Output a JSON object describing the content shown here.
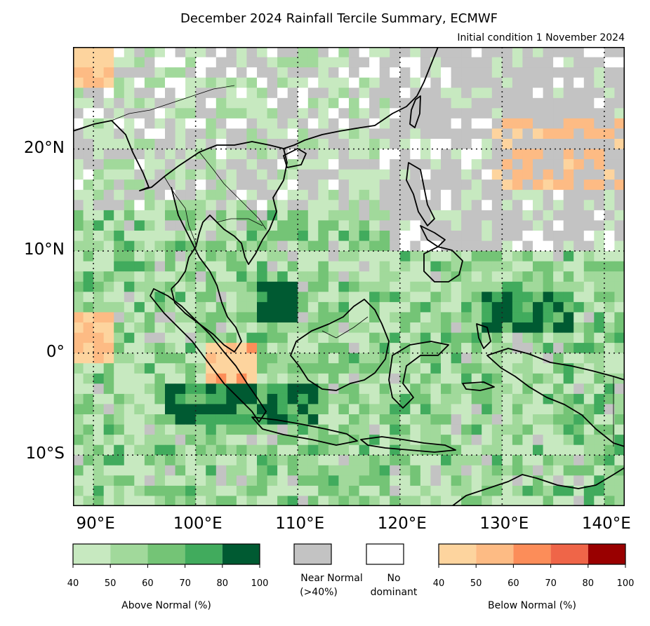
{
  "title": "December 2024 Rainfall Tercile Summary, ECMWF",
  "subtitle": "Initial condition 1 November 2024",
  "axes": {
    "lat_labels": [
      "20°N",
      "10°N",
      "0°",
      "10°S"
    ],
    "lon_labels": [
      "90°E",
      "100°E",
      "110°E",
      "120°E",
      "130°E",
      "140°E"
    ],
    "extent": {
      "lon_min": 88,
      "lon_max": 142,
      "lat_min": -15,
      "lat_max": 30
    }
  },
  "colors": {
    "above": [
      "#c7e9c0",
      "#a1d99b",
      "#74c476",
      "#41ab5d",
      "#005a32"
    ],
    "near_normal": "#c3c3c3",
    "no_dominant": "#ffffff",
    "below": [
      "#fdd49e",
      "#fdbb84",
      "#fc8d59",
      "#ef6548",
      "#990000"
    ]
  },
  "legend": {
    "above": {
      "caption": "Above Normal (%)",
      "ticks": [
        "40",
        "50",
        "60",
        "70",
        "80",
        "100"
      ]
    },
    "near_normal": {
      "caption_line1": "Near Normal",
      "caption_line2": "(>40%)"
    },
    "no_dominant": {
      "caption_line1": "No",
      "caption_line2": "dominant"
    },
    "below": {
      "caption": "Below Normal (%)",
      "ticks": [
        "40",
        "50",
        "60",
        "70",
        "80",
        "100"
      ]
    }
  }
}
